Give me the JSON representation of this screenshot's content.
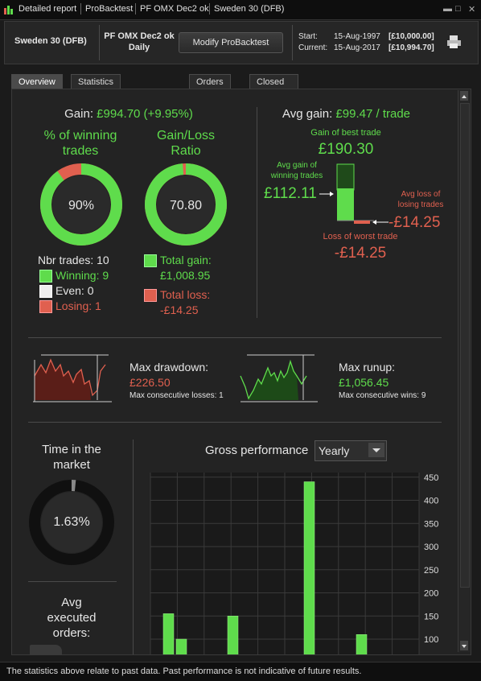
{
  "titlebar": {
    "tabs": [
      "Detailed report",
      "ProBacktest",
      "PF OMX Dec2 ok",
      "Sweden 30 (DFB)"
    ],
    "minimize": "▬",
    "restore": "□",
    "close": "✕"
  },
  "header": {
    "instrument": "Sweden 30 (DFB)",
    "system_name": "PF OMX Dec2 ok",
    "timeframe": "Daily",
    "modify_button": "Modify ProBacktest",
    "start_label": "Start:",
    "start_date": "15-Aug-1997",
    "start_value": "[£10,000.00]",
    "current_label": "Current:",
    "current_date": "15-Aug-2017",
    "current_value": "[£10,994.70]"
  },
  "tabs": [
    {
      "label": "Overview",
      "active": true
    },
    {
      "label": "Statistics of closed trades",
      "active": false
    },
    {
      "label": "Orders list",
      "active": false
    },
    {
      "label": "Closed positions list",
      "active": false
    }
  ],
  "overview": {
    "gain_label": "Gain:",
    "gain_value": "£994.70 (+9.95%)",
    "winning_pct_title_1": "% of winning",
    "winning_pct_title_2": "trades",
    "winning_pct_value": "90%",
    "winning_fraction": 0.9,
    "gl_ratio_title_1": "Gain/Loss",
    "gl_ratio_title_2": "Ratio",
    "gl_ratio_value": "70.80",
    "gl_fraction": 0.986,
    "nbr_trades": "Nbr trades: 10",
    "winning": "Winning: 9",
    "even": "Even: 0",
    "losing": "Losing: 1",
    "total_gain_label": "Total gain:",
    "total_gain_value": "£1,008.95",
    "total_loss_label": "Total loss:",
    "total_loss_value": "-£14.25"
  },
  "avg": {
    "avg_gain_label": "Avg gain:",
    "avg_gain_value": "£99.47 / trade",
    "best_trade_label": "Gain of best trade",
    "best_trade_value": "£190.30",
    "avg_win_label_1": "Avg gain of",
    "avg_win_label_2": "winning trades",
    "avg_win_value": "£112.11",
    "avg_loss_label_1": "Avg loss of",
    "avg_loss_label_2": "losing trades",
    "avg_loss_value": "-£14.25",
    "worst_trade_label": "Loss of worst trade",
    "worst_trade_value": "-£14.25"
  },
  "drawdown": {
    "title": "Max drawdown:",
    "value": "£226.50",
    "consecutive": "Max consecutive losses: 1"
  },
  "runup": {
    "title": "Max runup:",
    "value": "£1,056.45",
    "consecutive": "Max consecutive wins: 9"
  },
  "market": {
    "title_1": "Time in the",
    "title_2": "market",
    "value": "1.63%",
    "fraction": 0.0163
  },
  "orders": {
    "title_1": "Avg",
    "title_2": "executed",
    "title_3": "orders:"
  },
  "gross": {
    "title": "Gross performance",
    "period": "Yearly"
  },
  "chart_data": {
    "type": "bar",
    "title": "Gross performance",
    "y_ticks": [
      100,
      150,
      200,
      250,
      300,
      350,
      400,
      450
    ],
    "ylim": [
      60,
      460
    ],
    "values": [
      155,
      100,
      150,
      440,
      110
    ],
    "grid": true
  },
  "footer": {
    "disclaimer": "The statistics above relate to past data. Past performance is not indicative of future results."
  },
  "colors": {
    "accent_green": "#5fdc4c",
    "accent_red": "#e0604f",
    "donut_track": "#e0604f"
  }
}
